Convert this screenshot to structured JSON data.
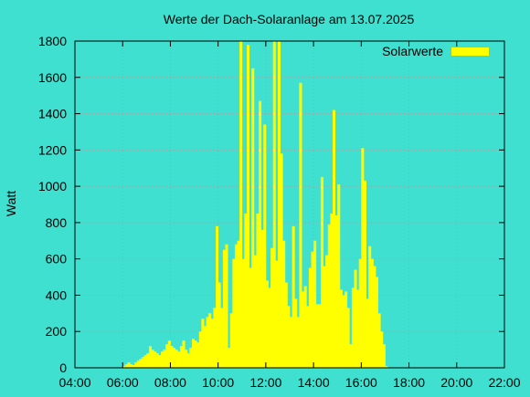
{
  "chart_data": {
    "type": "bar",
    "title": "Werte der Dach-Solaranlage am 13.07.2025",
    "xlabel": "",
    "ylabel": "Watt",
    "xlim": [
      4,
      22
    ],
    "ylim": [
      0,
      1800
    ],
    "x_ticks": [
      "04:00",
      "06:00",
      "08:00",
      "10:00",
      "12:00",
      "14:00",
      "16:00",
      "18:00",
      "20:00",
      "22:00"
    ],
    "y_ticks": [
      "0",
      "200",
      "400",
      "600",
      "800",
      "1000",
      "1200",
      "1400",
      "1600",
      "1800"
    ],
    "grid": true,
    "legend_position": "top-right",
    "series": [
      {
        "name": "Solarwerte",
        "color": "#ffff00",
        "x_hours": [
          6.0,
          6.1,
          6.2,
          6.3,
          6.4,
          6.5,
          6.6,
          6.7,
          6.8,
          6.9,
          7.0,
          7.1,
          7.2,
          7.3,
          7.4,
          7.5,
          7.6,
          7.7,
          7.8,
          7.9,
          8.0,
          8.1,
          8.2,
          8.3,
          8.4,
          8.5,
          8.6,
          8.7,
          8.8,
          8.9,
          9.0,
          9.1,
          9.2,
          9.3,
          9.4,
          9.5,
          9.6,
          9.7,
          9.8,
          9.9,
          10.0,
          10.1,
          10.2,
          10.3,
          10.4,
          10.5,
          10.6,
          10.7,
          10.8,
          10.9,
          11.0,
          11.1,
          11.2,
          11.3,
          11.4,
          11.5,
          11.6,
          11.7,
          11.8,
          11.9,
          12.0,
          12.1,
          12.2,
          12.3,
          12.4,
          12.5,
          12.6,
          12.7,
          12.8,
          12.9,
          13.0,
          13.1,
          13.2,
          13.3,
          13.4,
          13.5,
          13.6,
          13.7,
          13.8,
          13.9,
          14.0,
          14.1,
          14.2,
          14.3,
          14.4,
          14.5,
          14.6,
          14.7,
          14.8,
          14.9,
          15.0,
          15.1,
          15.2,
          15.3,
          15.4,
          15.5,
          15.6,
          15.7,
          15.8,
          15.9,
          16.0,
          16.1,
          16.2,
          16.3,
          16.4,
          16.5,
          16.6,
          16.7,
          16.8,
          16.9,
          17.0
        ],
        "values": [
          10,
          20,
          30,
          20,
          15,
          30,
          40,
          50,
          60,
          70,
          80,
          120,
          100,
          90,
          80,
          70,
          90,
          100,
          130,
          150,
          120,
          110,
          100,
          90,
          120,
          150,
          100,
          80,
          110,
          160,
          150,
          140,
          200,
          270,
          230,
          280,
          300,
          270,
          330,
          780,
          470,
          330,
          650,
          680,
          110,
          300,
          600,
          680,
          700,
          1800,
          600,
          850,
          1780,
          550,
          1650,
          620,
          850,
          1470,
          760,
          1340,
          480,
          440,
          660,
          1800,
          590,
          1800,
          1180,
          700,
          470,
          340,
          280,
          780,
          380,
          280,
          1570,
          420,
          450,
          340,
          550,
          640,
          700,
          350,
          350,
          1050,
          560,
          620,
          790,
          850,
          1420,
          840,
          1010,
          430,
          400,
          420,
          330,
          130,
          440,
          540,
          430,
          600,
          1210,
          1030,
          380,
          670,
          600,
          560,
          500,
          300,
          200,
          130,
          10
        ]
      }
    ]
  }
}
